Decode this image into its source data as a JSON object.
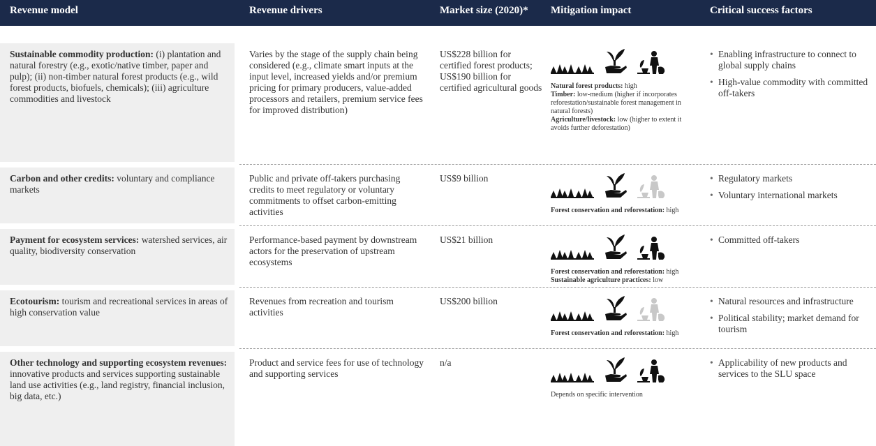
{
  "header": [
    "Revenue model",
    "Revenue drivers",
    "Market size (2020)*",
    "Mitigation impact",
    "Critical success factors"
  ],
  "rows": [
    {
      "model": {
        "title": "Sustainable commodity production:",
        "text": "(i) plantation and natural forestry (e.g., exotic/native timber, paper and pulp); (ii) non-timber natural forest products (e.g., wild forest products, biofuels, chemicals); (iii) agriculture commodities and livestock"
      },
      "drivers": "Varies by the stage of the supply chain being considered (e.g., climate smart inputs at the input level, increased yields and/or premium pricing for primary producers, value-added processors and retailers, premium service fees for improved distribution)",
      "market": "US$228 billion for certified forest products; US$190 billion for certified agricultural goods",
      "impact": {
        "highlighted": [
          true,
          true,
          true
        ],
        "notes": [
          {
            "label": "Natural forest products:",
            "text": "high"
          },
          {
            "label": "Timber:",
            "text": "low-medium (higher if incorporates reforestation/sustainable forest management in natural forests)"
          },
          {
            "label": "Agriculture/livestock:",
            "text": "low (higher to extent it avoids further deforestation)"
          }
        ]
      },
      "factors": [
        "Enabling infrastructure to connect to global supply chains",
        "High-value commodity with committed off-takers"
      ]
    },
    {
      "model": {
        "title": "Carbon and other credits:",
        "text": "voluntary and compliance markets"
      },
      "drivers": "Public and private off-takers purchasing credits to meet regulatory or voluntary commitments to offset carbon-emitting activities",
      "market": "US$9 billion",
      "impact": {
        "highlighted": [
          true,
          true,
          false
        ],
        "notes": [
          {
            "label": "Forest conservation and reforestation:",
            "text": "high"
          }
        ]
      },
      "factors": [
        "Regulatory markets",
        "Voluntary international markets"
      ]
    },
    {
      "model": {
        "title": "Payment for ecosystem services:",
        "text": "watershed services, air quality, biodiversity conservation"
      },
      "drivers": "Performance-based payment by downstream actors for the preservation of upstream ecosystems",
      "market": "US$21 billion",
      "impact": {
        "highlighted": [
          true,
          true,
          true
        ],
        "notes": [
          {
            "label": "Forest conservation and reforestation:",
            "text": "high"
          },
          {
            "label": "Sustainable agriculture practices:",
            "text": "low"
          }
        ]
      },
      "factors": [
        "Committed off-takers"
      ]
    },
    {
      "model": {
        "title": "Ecotourism:",
        "text": "tourism and recreational services in areas of high conservation value"
      },
      "drivers": "Revenues from recreation and tourism activities",
      "market": "US$200 billion",
      "impact": {
        "highlighted": [
          true,
          true,
          false
        ],
        "notes": [
          {
            "label": "Forest conservation and reforestation:",
            "text": "high"
          }
        ]
      },
      "factors": [
        "Natural resources and infrastructure",
        "Political stability; market demand for tourism"
      ]
    },
    {
      "model": {
        "title": "Other technology and supporting ecosystem revenues:",
        "text": "innovative products and services supporting sustainable land use activities (e.g., land registry, financial inclusion, big data, etc.)"
      },
      "drivers": "Product and service fees for use of technology and supporting services",
      "market": "n/a",
      "impact": {
        "highlighted": [
          true,
          true,
          true
        ],
        "notes": [
          {
            "text": "Depends on specific intervention"
          }
        ]
      },
      "factors": [
        "Applicability of new products and services to the SLU space"
      ]
    }
  ]
}
